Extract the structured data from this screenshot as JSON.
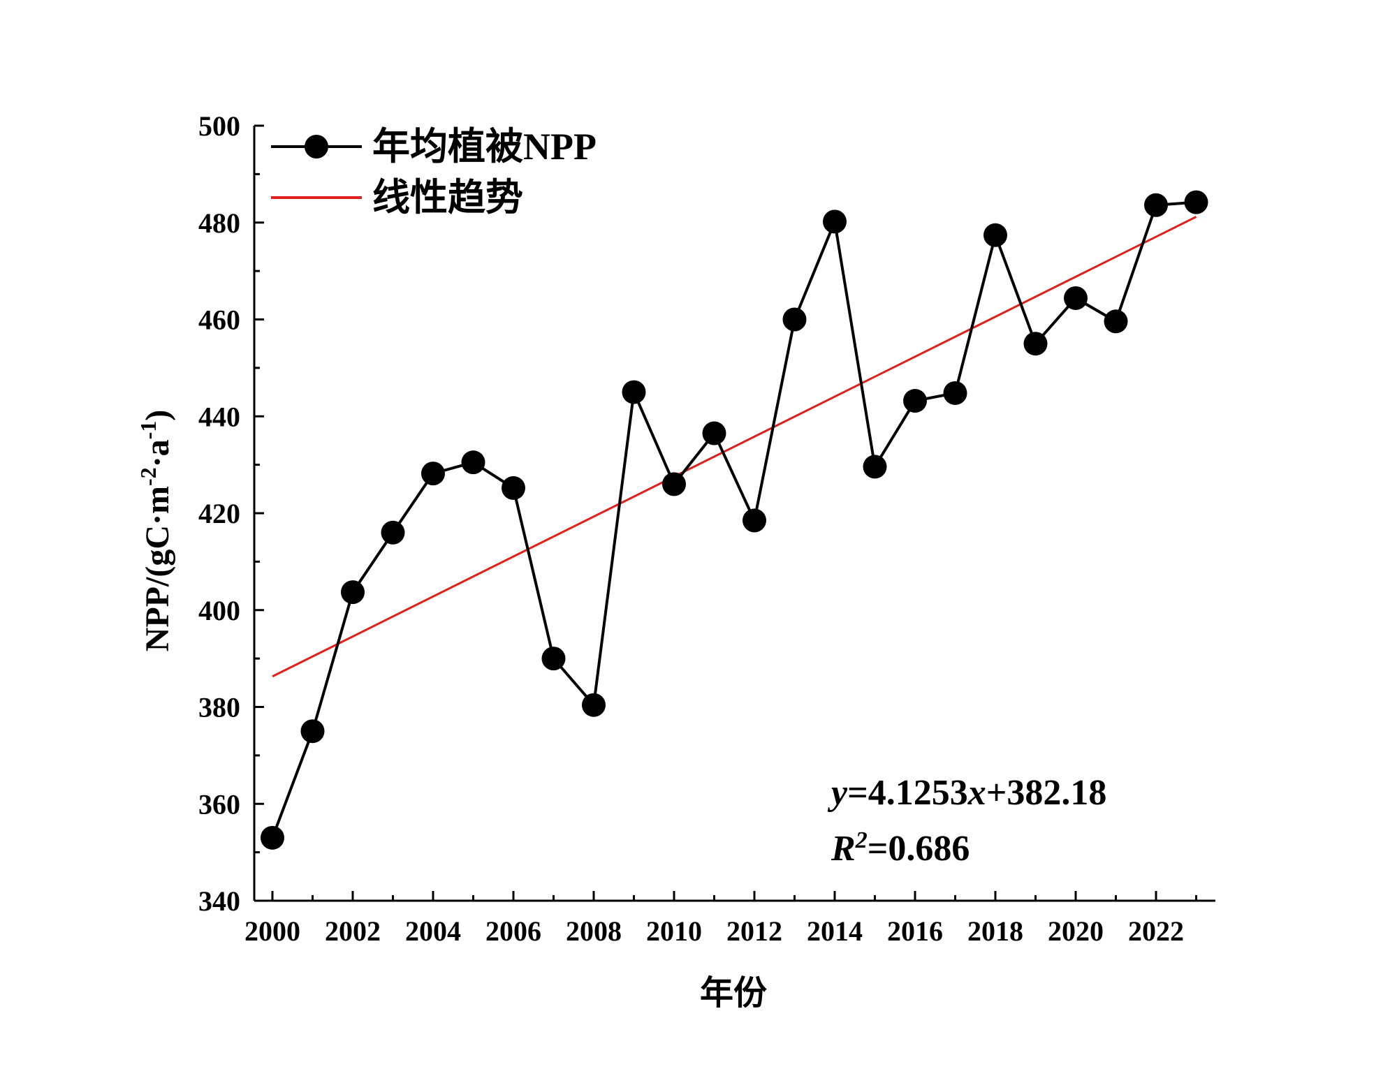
{
  "chart_data": {
    "type": "line",
    "title": "",
    "xlabel": "年份",
    "ylabel": "NPP/(gC·m⁻²·a⁻¹)",
    "ylabel_parts": {
      "base": "NPP/(gC·m",
      "exp1": "-2",
      "mid": "·a",
      "exp2": "-1",
      "end": ")"
    },
    "xlim": [
      2000,
      2023
    ],
    "ylim": [
      340,
      500
    ],
    "x_ticks": [
      2000,
      2002,
      2004,
      2006,
      2008,
      2010,
      2012,
      2014,
      2016,
      2018,
      2020,
      2022
    ],
    "y_ticks": [
      340,
      360,
      380,
      400,
      420,
      440,
      460,
      480,
      500
    ],
    "legend_position": "top-left",
    "series": [
      {
        "name": "年均植被NPP",
        "color": "#000000",
        "marker": "circle",
        "x": [
          2000,
          2001,
          2002,
          2003,
          2004,
          2005,
          2006,
          2007,
          2008,
          2009,
          2010,
          2011,
          2012,
          2013,
          2014,
          2015,
          2016,
          2017,
          2018,
          2019,
          2020,
          2021,
          2022,
          2023
        ],
        "values": [
          353,
          375,
          403.7,
          416,
          428.2,
          430.5,
          425.2,
          390,
          380.4,
          445,
          426,
          436.5,
          418.5,
          460,
          480.2,
          429.6,
          443.2,
          444.8,
          477.4,
          455,
          464.4,
          459.6,
          483.6,
          484.2
        ]
      },
      {
        "name": "线性趋势",
        "color": "#e0201b",
        "type": "trend",
        "slope": 4.1253,
        "intercept": 382.18,
        "x": [
          2000,
          2023
        ]
      }
    ],
    "annotations": {
      "equation": {
        "y": "y",
        "eq1": "=4.1253",
        "x": "x",
        "eq2": "+382.18"
      },
      "r2": {
        "r": "R",
        "sup": "2",
        "rest": "=0.686"
      }
    }
  }
}
